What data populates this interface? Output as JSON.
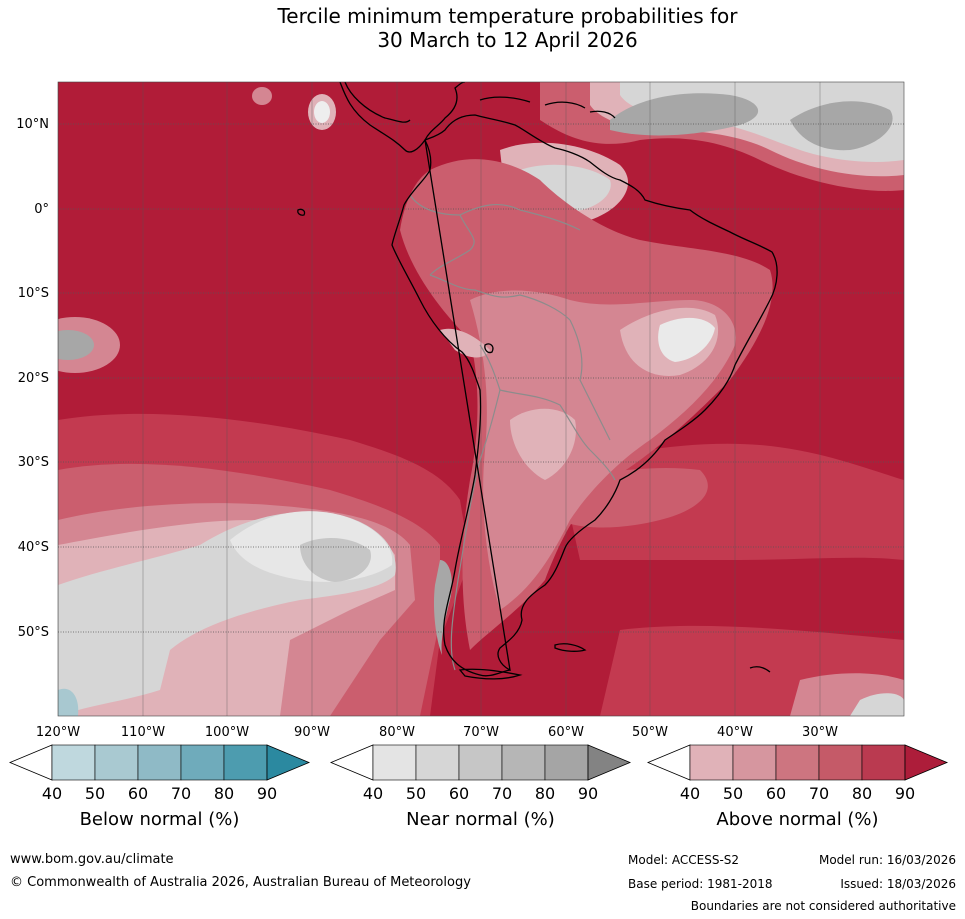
{
  "title": {
    "line1": "Tercile minimum temperature probabilities for",
    "line2": "30 March to 12 April 2026"
  },
  "map": {
    "lat_labels": [
      "10°N",
      "0°",
      "10°S",
      "20°S",
      "30°S",
      "40°S",
      "50°S"
    ],
    "lon_labels": [
      "120°W",
      "110°W",
      "100°W",
      "90°W",
      "80°W",
      "70°W",
      "60°W",
      "50°W",
      "40°W",
      "30°W"
    ],
    "colors": {
      "above_90": "#b11c38",
      "above_80": "#c33a50",
      "above_70": "#cb5e6e",
      "above_60": "#d48692",
      "above_50": "#e0b2b8",
      "near_50": "#d6d6d6",
      "near_60": "#c6c6c6",
      "near_80": "#a7a7a7",
      "below_50": "#a8c8d0",
      "coast": "#000000",
      "border": "#8c8c8c",
      "grid": "#555555"
    }
  },
  "colorbars": [
    {
      "name": "below",
      "title": "Below normal (%)",
      "ticks": [
        "40",
        "50",
        "60",
        "70",
        "80",
        "90"
      ],
      "colors": [
        "#bfd8de",
        "#a9c9d1",
        "#8fbac6",
        "#6fabbb",
        "#4d9caf",
        "#2b89a0"
      ]
    },
    {
      "name": "near",
      "title": "Near normal (%)",
      "ticks": [
        "40",
        "50",
        "60",
        "70",
        "80",
        "90"
      ],
      "colors": [
        "#e4e4e4",
        "#d6d6d6",
        "#c6c6c6",
        "#b6b6b6",
        "#a5a5a5",
        "#838383"
      ]
    },
    {
      "name": "above",
      "title": "Above normal (%)",
      "ticks": [
        "40",
        "50",
        "60",
        "70",
        "80",
        "90"
      ],
      "colors": [
        "#e0b2b8",
        "#d6969f",
        "#cd7580",
        "#c55a68",
        "#ba3a50",
        "#ad1d3a"
      ]
    }
  ],
  "footer": {
    "website": "www.bom.gov.au/climate",
    "copyright": "© Commonwealth of Australia 2026, Australian Bureau of Meteorology",
    "model": "Model: ACCESS-S2",
    "model_run": "Model run: 16/03/2026",
    "base_period": "Base period: 1981-2018",
    "issued": "Issued: 18/03/2026",
    "disclaimer": "Boundaries are not considered authoritative"
  }
}
